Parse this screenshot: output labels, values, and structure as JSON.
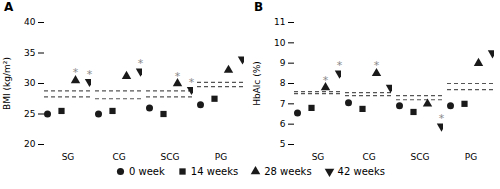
{
  "chart_data": [
    {
      "type": "scatter",
      "title": "A",
      "ylabel": "BMI (kg/m²)",
      "categories": [
        "SG",
        "CG",
        "SCG",
        "PG"
      ],
      "ylim": [
        20,
        40
      ],
      "yticks": [
        20,
        25,
        30,
        35,
        40
      ],
      "grid": false,
      "legend": "bottom",
      "series": [
        {
          "name": "0 week",
          "color": "#1a1a1a",
          "marker": "circle",
          "values": [
            25.0,
            25.0,
            26.0,
            26.5
          ]
        },
        {
          "name": "14 weeks",
          "color": "#1a1a1a",
          "marker": "square",
          "values": [
            25.5,
            25.5,
            25.0,
            27.5
          ]
        },
        {
          "name": "28 weeks",
          "color": "#1a1a1a",
          "marker": "triangle",
          "values": [
            30.5,
            31.2,
            30.0,
            32.2
          ]
        },
        {
          "name": "42 weeks",
          "color": "#1a1a1a",
          "marker": "triangle-down",
          "values": [
            30.3,
            32.0,
            29.0,
            34.0
          ]
        },
        {
          "type": "tick",
          "color": "#555555",
          "line_style": "dashed",
          "values": [
            27.8,
            27.5,
            27.8,
            29.5
          ]
        },
        {
          "type": "tick",
          "color": "#555555",
          "line_style": "dashed",
          "values": [
            28.8,
            28.8,
            28.8,
            30.2
          ]
        }
      ],
      "annotations": [
        {
          "text": "*",
          "category": "SG",
          "series": "28 weeks",
          "color": "#888888"
        },
        {
          "text": "*",
          "category": "SCG",
          "series": "28 weeks",
          "color": "#888888"
        },
        {
          "text": "*",
          "category": "SG",
          "series": "42 weeks",
          "color": "#888888"
        },
        {
          "text": "*",
          "category": "CG",
          "series": "42 weeks",
          "color": "#888888"
        },
        {
          "text": "*",
          "category": "SCG",
          "series": "42 weeks",
          "color": "#888888"
        }
      ]
    },
    {
      "type": "scatter",
      "title": "B",
      "ylabel": "HbAlc (%)",
      "categories": [
        "SG",
        "CG",
        "SCG",
        "PG"
      ],
      "ylim": [
        5,
        11
      ],
      "yticks": [
        5,
        6,
        7,
        8,
        9,
        10,
        11
      ],
      "grid": false,
      "legend": "bottom",
      "series": [
        {
          "name": "0 week",
          "color": "#1a1a1a",
          "marker": "circle",
          "values": [
            6.55,
            7.05,
            6.9,
            6.9
          ]
        },
        {
          "name": "14 weeks",
          "color": "#1a1a1a",
          "marker": "square",
          "values": [
            6.8,
            6.75,
            6.6,
            7.0
          ]
        },
        {
          "name": "28 weeks",
          "color": "#1a1a1a",
          "marker": "triangle",
          "values": [
            7.8,
            8.5,
            7.0,
            9.0
          ]
        },
        {
          "name": "42 weeks",
          "color": "#1a1a1a",
          "marker": "triangle-down",
          "values": [
            8.5,
            7.8,
            5.9,
            9.5
          ]
        },
        {
          "type": "tick",
          "color": "#555555",
          "line_style": "dashed",
          "values": [
            7.5,
            7.4,
            7.2,
            7.7
          ]
        },
        {
          "type": "tick",
          "color": "#555555",
          "line_style": "dashed",
          "values": [
            7.6,
            7.55,
            7.4,
            8.0
          ]
        }
      ],
      "annotations": [
        {
          "text": "*",
          "category": "SG",
          "series": "28 weeks",
          "color": "#888888"
        },
        {
          "text": "*",
          "category": "CG",
          "series": "28 weeks",
          "color": "#888888"
        },
        {
          "text": "*",
          "category": "SG",
          "series": "42 weeks",
          "color": "#888888"
        },
        {
          "text": "*",
          "category": "SCG",
          "series": "42 weeks",
          "color": "#888888"
        }
      ]
    }
  ]
}
